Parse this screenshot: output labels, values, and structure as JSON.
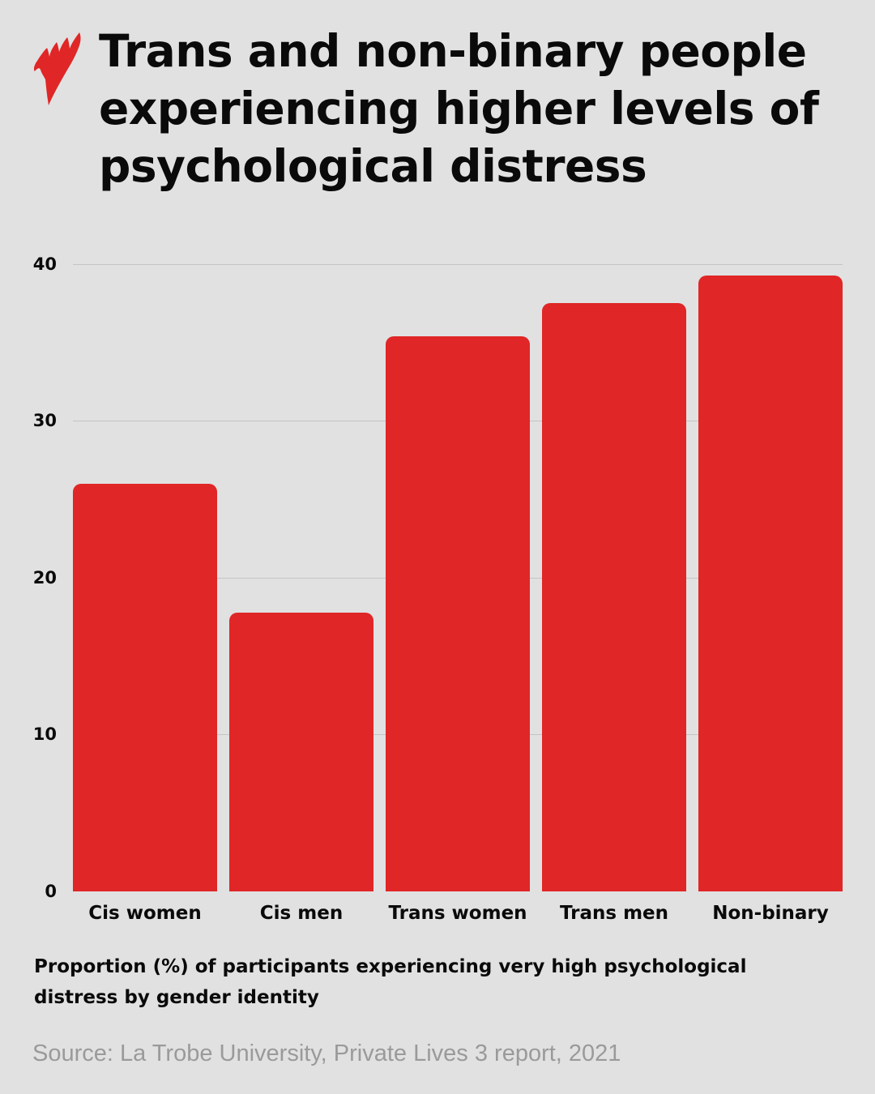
{
  "brand": {
    "logo_icon": "sbs-mercator-logo-icon",
    "accent_color": "#e02626",
    "background_color": "#e1e1e1",
    "gridline_color": "#c4c4c4",
    "source_color": "#9a9a9a"
  },
  "header": {
    "title": "Trans and non-binary people experiencing higher levels of psychological distress"
  },
  "caption": "Proportion (%) of participants experiencing very high psychological distress by gender identity",
  "source": "Source: La Trobe University, Private Lives 3 report, 2021",
  "y_ticks": [
    "40",
    "30",
    "20",
    "10",
    "0"
  ],
  "chart_data": {
    "type": "bar",
    "title": "Trans and non-binary people experiencing higher levels of psychological distress",
    "subtitle": "Proportion (%) of participants experiencing very high psychological distress by gender identity",
    "xlabel": "",
    "ylabel": "Proportion (%)",
    "categories": [
      "Cis women",
      "Cis men",
      "Trans women",
      "Trans men",
      "Non-binary"
    ],
    "values": [
      26.0,
      17.8,
      35.4,
      37.5,
      39.3
    ],
    "ylim": [
      0,
      40
    ],
    "yticks": [
      0,
      10,
      20,
      30,
      40
    ],
    "grid": true,
    "legend": null,
    "bar_color": "#e02626",
    "source": "Source: La Trobe University, Private Lives 3 report, 2021"
  }
}
